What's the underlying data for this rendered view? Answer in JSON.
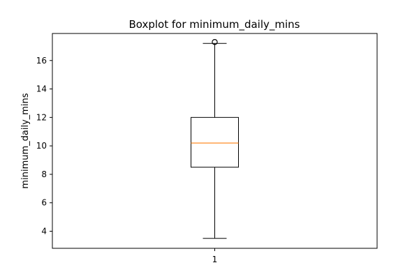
{
  "chart_data": {
    "type": "boxplot",
    "title": "Boxplot for minimum_daily_mins",
    "xlabel": "",
    "ylabel": "minimum_daily_mins",
    "categories": [
      "1"
    ],
    "ylim": [
      2.8,
      17.9
    ],
    "yticks": [
      4,
      6,
      8,
      10,
      12,
      14,
      16
    ],
    "grid": false,
    "boxes": [
      {
        "category": "1",
        "whisker_low": 3.5,
        "q1": 8.5,
        "median": 10.2,
        "q3": 12.0,
        "whisker_high": 17.2,
        "outliers": [
          17.3
        ]
      }
    ],
    "colors": {
      "median": "#ff7f0e",
      "box": "#000000"
    }
  }
}
